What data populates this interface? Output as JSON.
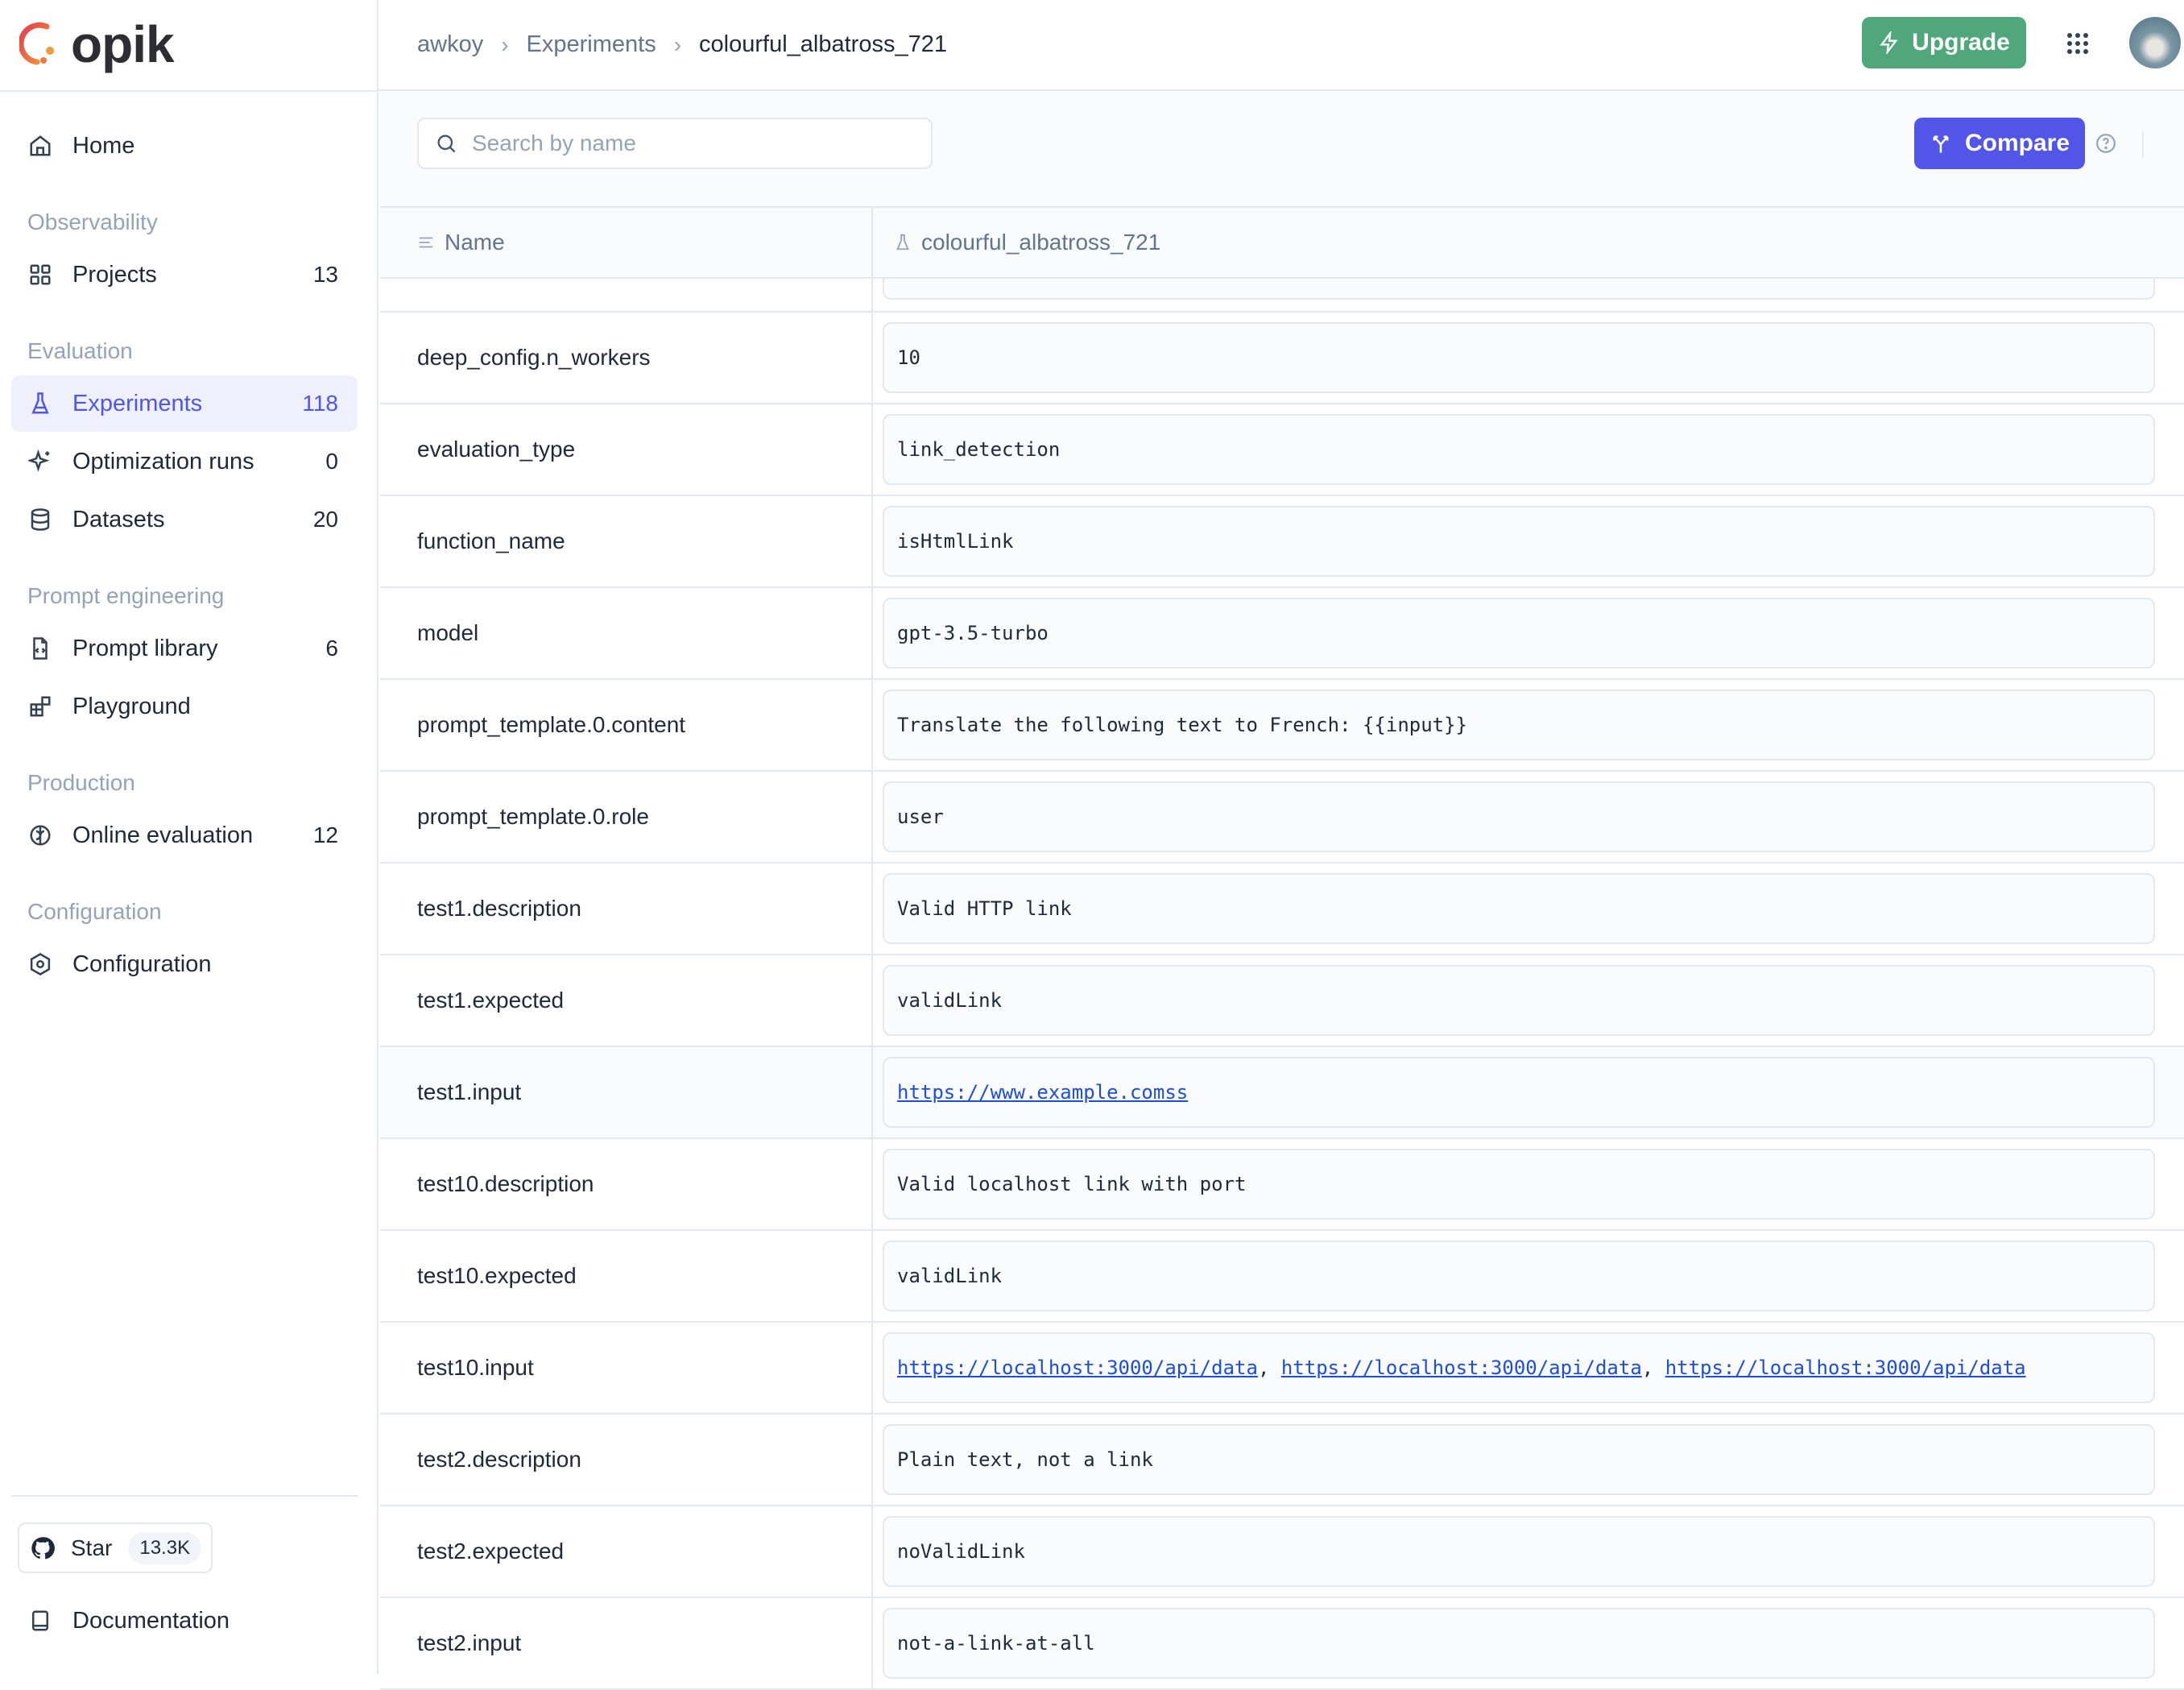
{
  "app": {
    "logo_text": "opik"
  },
  "colors": {
    "accent": "#5155e8",
    "upgrade": "#50a77b",
    "link": "#1d4ed8"
  },
  "breadcrumb": [
    "awkoy",
    "Experiments",
    "colourful_albatross_721"
  ],
  "header": {
    "upgrade_label": "Upgrade"
  },
  "sidebar": {
    "home": "Home",
    "sections": [
      {
        "title": "Observability",
        "items": [
          {
            "label": "Projects",
            "count": "13",
            "icon": "grid-icon"
          }
        ]
      },
      {
        "title": "Evaluation",
        "items": [
          {
            "label": "Experiments",
            "count": "118",
            "icon": "flask-icon",
            "active": true
          },
          {
            "label": "Optimization runs",
            "count": "0",
            "icon": "sparkles-icon"
          },
          {
            "label": "Datasets",
            "count": "20",
            "icon": "database-icon"
          }
        ]
      },
      {
        "title": "Prompt engineering",
        "items": [
          {
            "label": "Prompt library",
            "count": "6",
            "icon": "file-code-icon"
          },
          {
            "label": "Playground",
            "count": "",
            "icon": "blocks-icon"
          }
        ]
      },
      {
        "title": "Production",
        "items": [
          {
            "label": "Online evaluation",
            "count": "12",
            "icon": "brain-icon"
          }
        ]
      },
      {
        "title": "Configuration",
        "items": [
          {
            "label": "Configuration",
            "count": "",
            "icon": "settings-icon"
          }
        ]
      }
    ],
    "star_label": "Star",
    "star_count": "13.3K",
    "documentation": "Documentation"
  },
  "toolbar": {
    "search_placeholder": "Search by name",
    "search_value": "",
    "compare_label": "Compare"
  },
  "table": {
    "columns": [
      "Name",
      "colourful_albatross_721"
    ],
    "rows": [
      {
        "name": "deep_config.n_workers",
        "value": "10"
      },
      {
        "name": "evaluation_type",
        "value": "link_detection"
      },
      {
        "name": "function_name",
        "value": "isHtmlLink"
      },
      {
        "name": "model",
        "value": "gpt-3.5-turbo"
      },
      {
        "name": "prompt_template.0.content",
        "value": "Translate the following text to French: {{input}}"
      },
      {
        "name": "prompt_template.0.role",
        "value": "user"
      },
      {
        "name": "test1.description",
        "value": "Valid HTTP link"
      },
      {
        "name": "test1.expected",
        "value": "validLink"
      },
      {
        "name": "test1.input",
        "links": [
          "https://www.example.comss"
        ],
        "hovered": true
      },
      {
        "name": "test10.description",
        "value": "Valid localhost link with port"
      },
      {
        "name": "test10.expected",
        "value": "validLink"
      },
      {
        "name": "test10.input",
        "links": [
          "https://localhost:3000/api/data",
          "https://localhost:3000/api/data",
          "https://localhost:3000/api/data"
        ]
      },
      {
        "name": "test2.description",
        "value": "Plain text, not a link"
      },
      {
        "name": "test2.expected",
        "value": "noValidLink"
      },
      {
        "name": "test2.input",
        "value": "not-a-link-at-all"
      }
    ]
  }
}
